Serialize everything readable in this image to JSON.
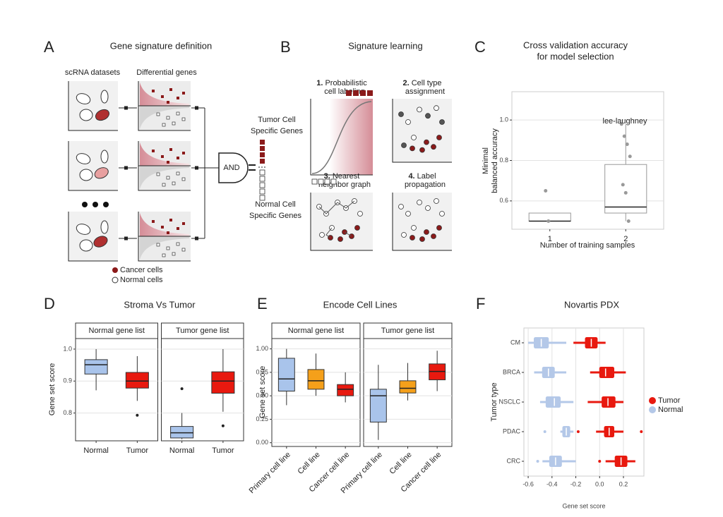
{
  "diagrams": {
    "A": {
      "label": "A",
      "title": "Gene signature definition",
      "headers": [
        "scRNA datasets",
        "Differential genes"
      ],
      "gate": "AND",
      "tumor_genes": [
        "Tumor Cell",
        "Specific Genes"
      ],
      "normal_genes": [
        "Normal Cell",
        "Specific Genes"
      ],
      "legend": [
        "Cancer cells",
        "Normal cells"
      ]
    },
    "B": {
      "label": "B",
      "title": "Signature learning",
      "steps": [
        {
          "number": "1.",
          "lines": [
            "Probabilistic",
            "cell labeling"
          ]
        },
        {
          "number": "2.",
          "lines": [
            "Cell type",
            "assignment"
          ]
        },
        {
          "number": "3.",
          "lines": [
            "Nearest",
            "neighbor graph"
          ]
        },
        {
          "number": "4.",
          "lines": [
            "Label",
            "propagation"
          ]
        }
      ]
    }
  },
  "chart_data": [
    {
      "panel": "C",
      "type": "box",
      "title": [
        "Cross validation accuracy",
        "for model selection"
      ],
      "ylabel": [
        "Minimal",
        "balanced accuracy"
      ],
      "xlabel": "Number of training samples",
      "categories": [
        "1",
        "2"
      ],
      "ylim": [
        0.46,
        1.14
      ],
      "yticks": [
        0.6,
        0.8,
        {
          "value": 1,
          "label": "1.0"
        }
      ],
      "grid": true,
      "annotation": "lee-laughney",
      "annotation_color": "#c0392b",
      "boxes": [
        {
          "color": "#ffffff",
          "low": 0.5,
          "q1": 0.5,
          "median": 0.5,
          "q3": 0.54,
          "high": 0.54,
          "points": [
            0.65,
            0.5
          ]
        },
        {
          "color": "#ffffff",
          "low": 0.5,
          "q1": 0.54,
          "median": 0.57,
          "q3": 0.78,
          "high": 0.98,
          "points": [
            0.98,
            0.92,
            0.88,
            0.82,
            0.68,
            0.64,
            0.5
          ]
        }
      ]
    },
    {
      "panel": "D",
      "type": "box",
      "title": "Stroma Vs Tumor",
      "ylabel": "Gene set score",
      "ylim": [
        0.713,
        1.033
      ],
      "yticks": [
        0.8,
        0.9,
        {
          "value": 1,
          "label": "1.0"
        }
      ],
      "grid": true,
      "facets": [
        {
          "title": "Normal gene list",
          "categories": [
            "Normal",
            "Tumor"
          ],
          "boxes": [
            {
              "color": "#a9c4eb",
              "low": 0.871,
              "q1": 0.922,
              "median": 0.951,
              "q3": 0.967,
              "high": 1.0
            },
            {
              "color": "#e8190f",
              "low": 0.838,
              "q1": 0.878,
              "median": 0.9,
              "q3": 0.927,
              "high": 0.978,
              "outliers": [
                0.793
              ]
            }
          ]
        },
        {
          "title": "Tumor gene list",
          "categories": [
            "Normal",
            "Tumor"
          ],
          "boxes": [
            {
              "color": "#a9c4eb",
              "low": 0.718,
              "q1": 0.722,
              "median": 0.738,
              "q3": 0.758,
              "high": 0.8,
              "outliers": [
                0.876
              ]
            },
            {
              "color": "#e8190f",
              "low": 0.804,
              "q1": 0.862,
              "median": 0.9,
              "q3": 0.929,
              "high": 1.0,
              "outliers": [
                0.76
              ]
            }
          ]
        }
      ]
    },
    {
      "panel": "E",
      "type": "box",
      "title": "Encode Cell Lines",
      "ylabel": "Gene set score",
      "ylim": [
        -0.04,
        1.11
      ],
      "yticks": [
        {
          "value": 0,
          "label": "0.00"
        },
        0.25,
        {
          "value": 0.5,
          "label": "0.50"
        },
        0.75,
        {
          "value": 1,
          "label": "1.00"
        }
      ],
      "grid": true,
      "facets": [
        {
          "title": "Normal gene list",
          "categories": [
            "Primary cell line",
            "Cell line",
            "Cancer cell line"
          ],
          "boxes": [
            {
              "color": "#a9c4eb",
              "low": 0.4,
              "q1": 0.55,
              "median": 0.68,
              "q3": 0.9,
              "high": 1.0
            },
            {
              "color": "#f5a01a",
              "low": 0.5,
              "q1": 0.57,
              "median": 0.66,
              "q3": 0.78,
              "high": 0.95
            },
            {
              "color": "#e8190f",
              "low": 0.43,
              "q1": 0.5,
              "median": 0.57,
              "q3": 0.62,
              "high": 0.75
            }
          ]
        },
        {
          "title": "Tumor gene list",
          "categories": [
            "Primary cell line",
            "Cell line",
            "Cancer cell line"
          ],
          "boxes": [
            {
              "color": "#a9c4eb",
              "low": 0.03,
              "q1": 0.22,
              "median": 0.5,
              "q3": 0.57,
              "high": 0.83
            },
            {
              "color": "#f5a01a",
              "low": 0.45,
              "q1": 0.53,
              "median": 0.58,
              "q3": 0.66,
              "high": 0.85
            },
            {
              "color": "#e8190f",
              "low": 0.55,
              "q1": 0.67,
              "median": 0.76,
              "q3": 0.84,
              "high": 0.98
            }
          ]
        }
      ]
    },
    {
      "panel": "F",
      "type": "hbox",
      "title": "Novartis PDX",
      "xlabel": "Gene set score",
      "ylabel": "Tumor type",
      "categories": [
        "CM",
        "BRCA",
        "NSCLC",
        "PDAC",
        "CRC"
      ],
      "xlim": [
        -0.636,
        0.372
      ],
      "xticks": [
        -0.6,
        -0.4,
        -0.2,
        {
          "value": 0,
          "label": "0.0"
        },
        0.2
      ],
      "grid": true,
      "legend": "right",
      "series": [
        {
          "name": "Tumor",
          "color": "#e8190f",
          "boxes": [
            {
              "low": -0.22,
              "q1": -0.12,
              "median": -0.07,
              "q3": -0.02,
              "high": 0.05
            },
            {
              "low": -0.08,
              "q1": 0,
              "median": 0.05,
              "q3": 0.12,
              "high": 0.22
            },
            {
              "low": -0.1,
              "q1": 0.02,
              "median": 0.07,
              "q3": 0.13,
              "high": 0.2
            },
            {
              "low": -0.03,
              "q1": 0.04,
              "median": 0.08,
              "q3": 0.12,
              "high": 0.2,
              "outliers": [
                -0.18,
                0.35
              ]
            },
            {
              "low": 0.05,
              "q1": 0.13,
              "median": 0.18,
              "q3": 0.23,
              "high": 0.3,
              "outliers": [
                0
              ]
            }
          ]
        },
        {
          "name": "Normal",
          "color": "#b4c8e8",
          "boxes": [
            {
              "low": -0.6,
              "q1": -0.55,
              "median": -0.49,
              "q3": -0.43,
              "high": -0.28
            },
            {
              "low": -0.55,
              "q1": -0.48,
              "median": -0.43,
              "q3": -0.38,
              "high": -0.28
            },
            {
              "low": -0.5,
              "q1": -0.45,
              "median": -0.38,
              "q3": -0.33,
              "high": -0.22
            },
            {
              "low": -0.33,
              "q1": -0.31,
              "median": -0.28,
              "q3": -0.25,
              "high": -0.22,
              "outliers": [
                -0.46
              ]
            },
            {
              "low": -0.48,
              "q1": -0.42,
              "median": -0.37,
              "q3": -0.32,
              "high": -0.2,
              "outliers": [
                -0.52
              ]
            }
          ]
        }
      ]
    }
  ]
}
